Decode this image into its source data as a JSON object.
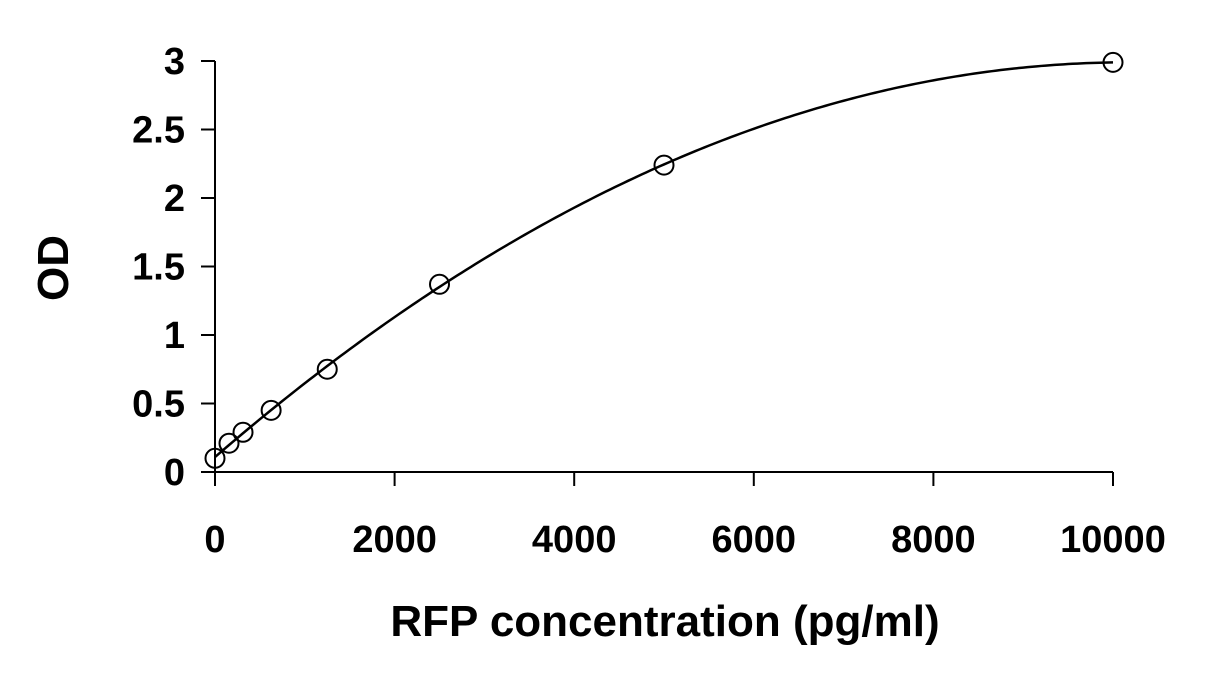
{
  "chart_data": {
    "type": "scatter",
    "title": "",
    "xlabel": "RFP concentration (pg/ml)",
    "ylabel": "OD",
    "xlim": [
      0,
      10000
    ],
    "ylim": [
      0,
      3
    ],
    "x_ticks": [
      0,
      2000,
      4000,
      6000,
      8000,
      10000
    ],
    "y_ticks": [
      0,
      0.5,
      1,
      1.5,
      2,
      2.5,
      3
    ],
    "x_tick_labels": [
      "0",
      "2000",
      "4000",
      "6000",
      "8000",
      "10000"
    ],
    "y_tick_labels": [
      "0",
      "0.5",
      "1",
      "1.5",
      "2",
      "2.5",
      "3"
    ],
    "grid": false,
    "legend": "none",
    "marker": "open-circle",
    "series": [
      {
        "x": [
          0,
          156,
          312,
          625,
          1250,
          2500,
          5000,
          10000
        ],
        "y": [
          0.1,
          0.21,
          0.29,
          0.45,
          0.75,
          1.37,
          2.24,
          2.99
        ],
        "trendline": "polynomial-2"
      }
    ],
    "colors": {
      "axis": "#000000",
      "marker": "#000000",
      "curve": "#000000"
    }
  }
}
